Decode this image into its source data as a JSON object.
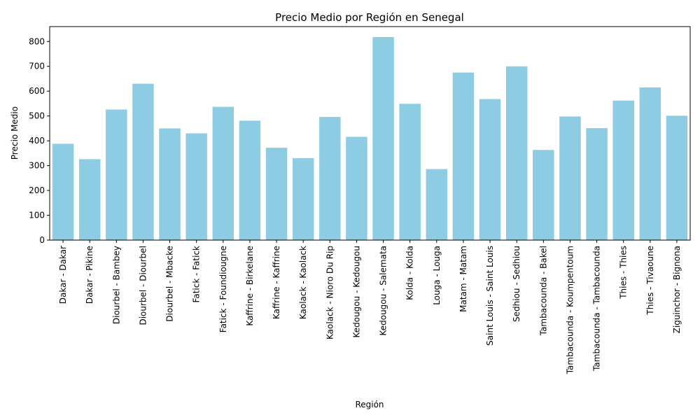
{
  "chart_data": {
    "type": "bar",
    "title": "Precio Medio por Región en Senegal",
    "xlabel": "Región",
    "ylabel": "Precio Medio",
    "ylim": [
      0,
      860
    ],
    "yticks": [
      0,
      100,
      200,
      300,
      400,
      500,
      600,
      700,
      800
    ],
    "grid": false,
    "legend": "none",
    "bar_color": "#8ECCE3",
    "categories": [
      "Dakar - Dakar",
      "Dakar - Pikine",
      "Diourbel - Bambey",
      "Diourbel - Diourbel",
      "Diourbel - Mbacke",
      "Fatick - Fatick",
      "Fatick - Foundiougne",
      "Kaffrine - Birkelane",
      "Kaffrine - Kaffrine",
      "Kaolack - Kaolack",
      "Kaolack - Nioro Du Rip",
      "Kedougou - Kedougou",
      "Kedougou - Salemata",
      "Kolda - Kolda",
      "Louga - Louga",
      "Matam - Matam",
      "Saint Louis - Saint Louis",
      "Sedhiou - Sedhiou",
      "Tambacounda - Bakel",
      "Tambacounda - Koumpentoum",
      "Tambacounda - Tambacounda",
      "Thies - Thies",
      "Thies - Tivaoune",
      "Ziguinchor - Bignona"
    ],
    "values": [
      388,
      326,
      526,
      630,
      450,
      430,
      537,
      481,
      372,
      330,
      496,
      416,
      818,
      549,
      286,
      675,
      568,
      700,
      363,
      498,
      451,
      562,
      615,
      501
    ]
  }
}
